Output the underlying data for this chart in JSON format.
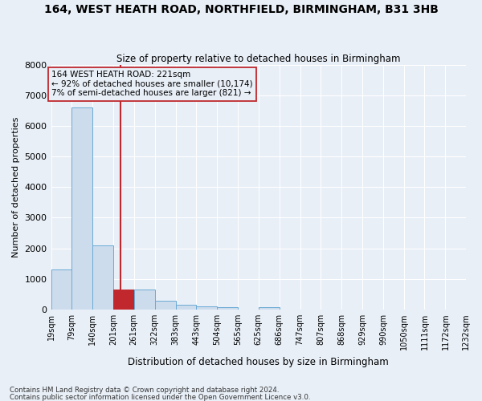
{
  "title": "164, WEST HEATH ROAD, NORTHFIELD, BIRMINGHAM, B31 3HB",
  "subtitle": "Size of property relative to detached houses in Birmingham",
  "xlabel": "Distribution of detached houses by size in Birmingham",
  "ylabel": "Number of detached properties",
  "footnote1": "Contains HM Land Registry data © Crown copyright and database right 2024.",
  "footnote2": "Contains public sector information licensed under the Open Government Licence v3.0.",
  "annotation_line1": "164 WEST HEATH ROAD: 221sqm",
  "annotation_line2": "← 92% of detached houses are smaller (10,174)",
  "annotation_line3": "7% of semi-detached houses are larger (821) →",
  "bar_color": "#cddcec",
  "bar_edge_color": "#6aaad4",
  "highlight_color": "#c0282d",
  "highlight_bar_color": "#c0282d",
  "background_color": "#e8eff7",
  "grid_color": "#ffffff",
  "vline_x": 221,
  "bins": [
    19,
    79,
    140,
    201,
    261,
    322,
    383,
    443,
    504,
    565,
    625,
    686,
    747,
    807,
    868,
    929,
    990,
    1050,
    1111,
    1172,
    1232
  ],
  "bin_labels": [
    "19sqm",
    "79sqm",
    "140sqm",
    "201sqm",
    "261sqm",
    "322sqm",
    "383sqm",
    "443sqm",
    "504sqm",
    "565sqm",
    "625sqm",
    "686sqm",
    "747sqm",
    "807sqm",
    "868sqm",
    "929sqm",
    "990sqm",
    "1050sqm",
    "1111sqm",
    "1172sqm",
    "1232sqm"
  ],
  "heights": [
    1300,
    6600,
    2100,
    650,
    650,
    280,
    150,
    100,
    70,
    0,
    80,
    0,
    0,
    0,
    0,
    0,
    0,
    0,
    0,
    0
  ],
  "highlight_bin_index": 3,
  "ylim": [
    0,
    8000
  ],
  "yticks": [
    0,
    1000,
    2000,
    3000,
    4000,
    5000,
    6000,
    7000,
    8000
  ]
}
